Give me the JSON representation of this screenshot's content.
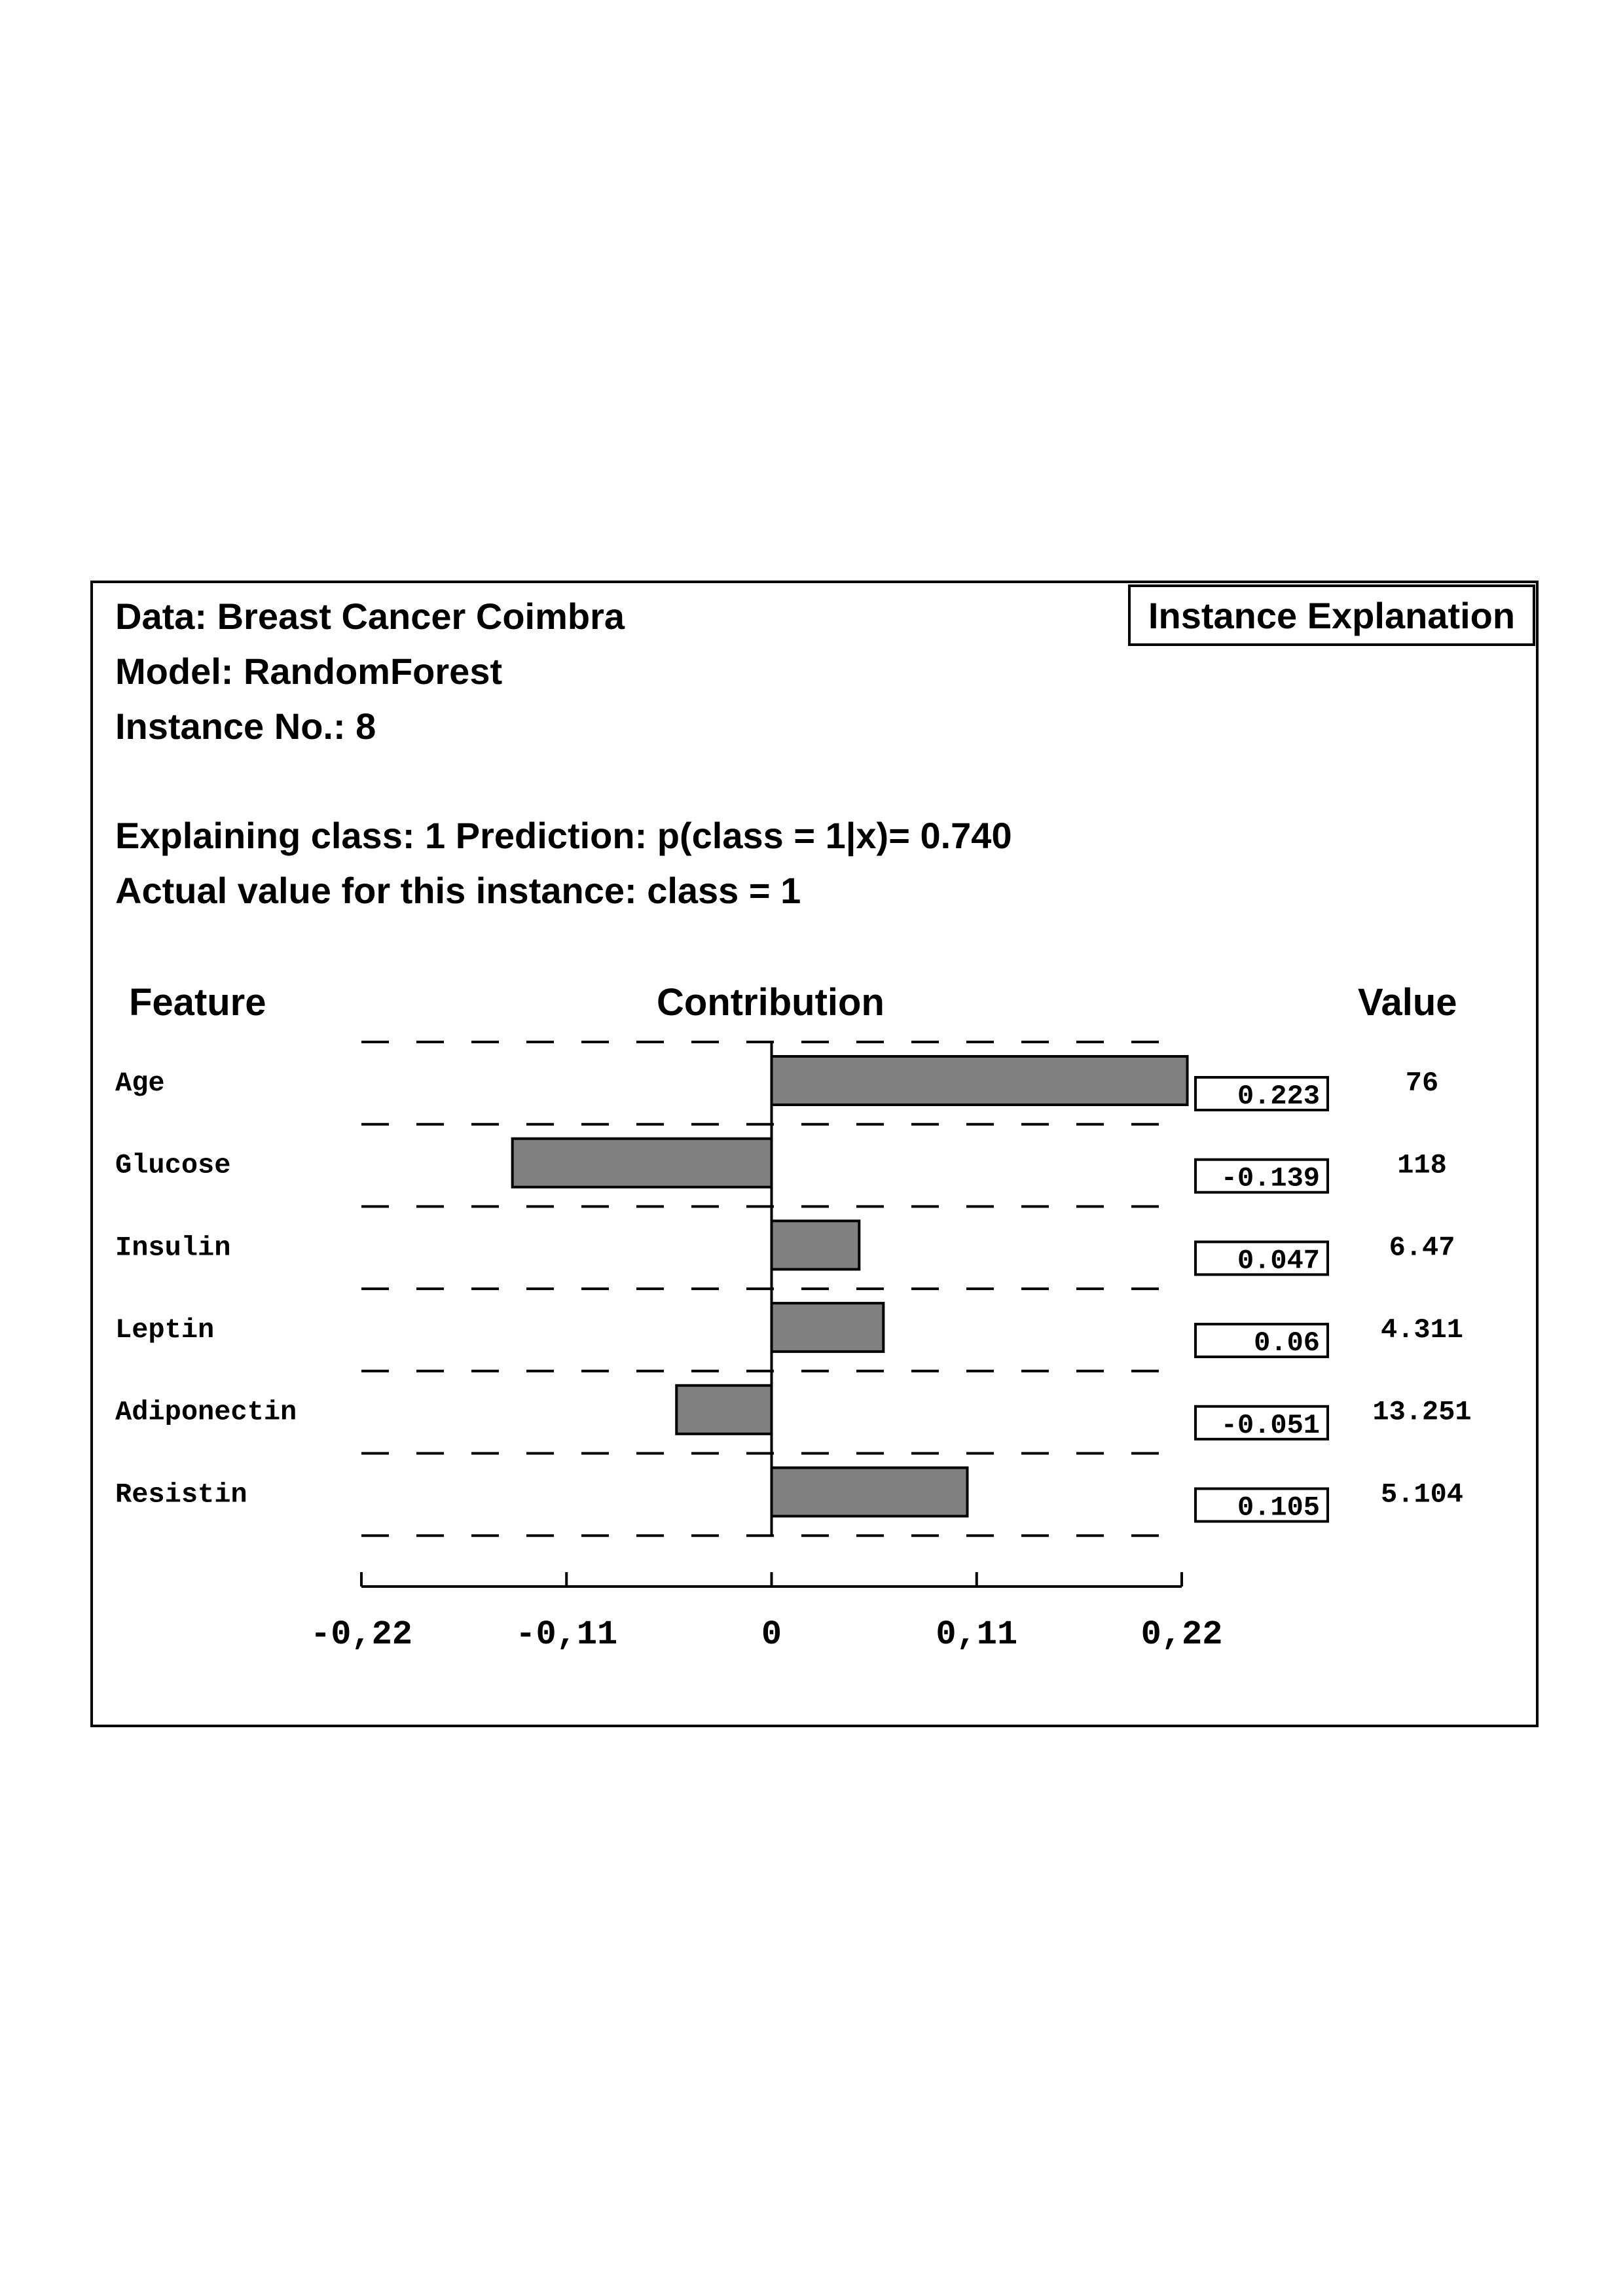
{
  "header": {
    "data_line": "Data: Breast Cancer Coimbra",
    "model_line": "Model: RandomForest",
    "instance_line": "Instance No.: 8",
    "explaining_line": "Explaining class: 1 Prediction: p(class = 1|x)= 0.740",
    "actual_line": "Actual value for this instance: class = 1",
    "badge": "Instance Explanation"
  },
  "columns": {
    "feature": "Feature",
    "contribution": "Contribution",
    "value": "Value"
  },
  "chart_data": {
    "type": "bar",
    "orientation": "horizontal",
    "categories": [
      "Age",
      "Glucose",
      "Insulin",
      "Leptin",
      "Adiponectin",
      "Resistin"
    ],
    "values": [
      0.223,
      -0.139,
      0.047,
      0.06,
      -0.051,
      0.105
    ],
    "contribution_labels": [
      "0.223",
      "-0.139",
      "0.047",
      "0.06",
      "-0.051",
      "0.105"
    ],
    "feature_values": [
      "76",
      "118",
      "6.47",
      "4.311",
      "13.251",
      "5.104"
    ],
    "xlim": [
      -0.22,
      0.22
    ],
    "xticks": [
      -0.22,
      -0.11,
      0,
      0.11,
      0.22
    ],
    "xtick_labels": [
      "-0,22",
      "-0,11",
      "0",
      "0,11",
      "0,22"
    ],
    "grid": "dashed horizontal separators",
    "bar_color": "#808080"
  }
}
